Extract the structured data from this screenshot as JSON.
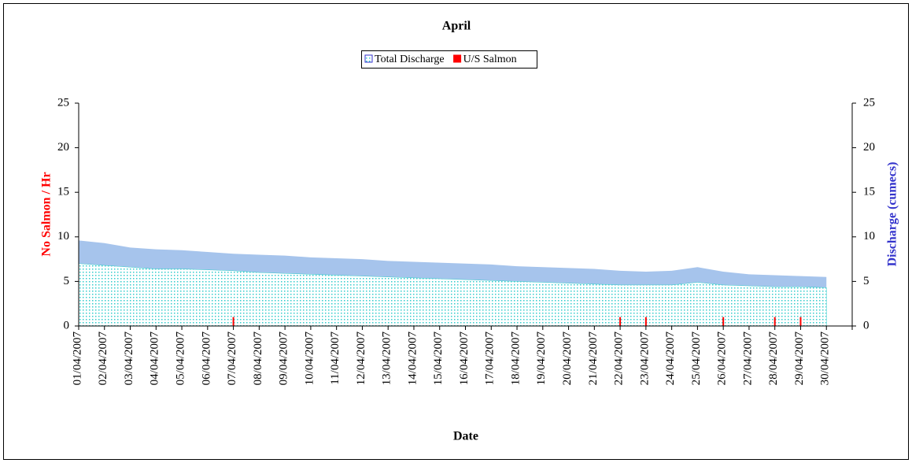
{
  "chart_data": {
    "type": "area",
    "title": "April",
    "xlabel": "Date",
    "ylabel": "No Salmon / Hr",
    "ylabel_color": "#ff0000",
    "y2label": "Discharge (cumecs)",
    "y2label_color": "#3333cc",
    "categories": [
      "01/04/2007",
      "02/04/2007",
      "03/04/2007",
      "04/04/2007",
      "05/04/2007",
      "06/04/2007",
      "07/04/2007",
      "08/04/2007",
      "09/04/2007",
      "10/04/2007",
      "11/04/2007",
      "12/04/2007",
      "13/04/2007",
      "14/04/2007",
      "15/04/2007",
      "16/04/2007",
      "17/04/2007",
      "18/04/2007",
      "19/04/2007",
      "20/04/2007",
      "21/04/2007",
      "22/04/2007",
      "23/04/2007",
      "24/04/2007",
      "25/04/2007",
      "26/04/2007",
      "27/04/2007",
      "28/04/2007",
      "29/04/2007",
      "30/04/2007"
    ],
    "series": [
      {
        "color": "#a6c4ec",
        "axis": "y2",
        "values": [
          9.6,
          9.3,
          8.8,
          8.6,
          8.5,
          8.3,
          8.1,
          8.0,
          7.9,
          7.7,
          7.6,
          7.5,
          7.3,
          7.2,
          7.1,
          7.0,
          6.9,
          6.7,
          6.6,
          6.5,
          6.4,
          6.2,
          6.1,
          6.2,
          6.6,
          6.1,
          5.8,
          5.7,
          5.6,
          5.5
        ]
      },
      {
        "name": "Total Discharge",
        "color": "#33cccc",
        "axis": "y2",
        "pattern": "dotted",
        "values": [
          7.0,
          6.8,
          6.6,
          6.4,
          6.4,
          6.3,
          6.2,
          6.0,
          5.9,
          5.8,
          5.7,
          5.6,
          5.5,
          5.4,
          5.3,
          5.2,
          5.1,
          5.0,
          4.9,
          4.8,
          4.7,
          4.6,
          4.6,
          4.6,
          4.9,
          4.6,
          4.5,
          4.4,
          4.4,
          4.3
        ]
      },
      {
        "name": "U/S Salmon",
        "color": "#ff0000",
        "axis": "y",
        "type": "bar",
        "values": [
          0,
          0,
          0,
          0,
          0,
          0,
          1,
          0,
          0,
          0,
          0,
          0,
          0,
          0,
          0,
          0,
          0,
          0,
          0,
          0,
          0,
          1,
          1,
          0,
          0,
          1,
          0,
          1,
          1,
          0
        ]
      }
    ],
    "ylim": [
      0,
      25
    ],
    "yticks": [
      0,
      5,
      10,
      15,
      20,
      25
    ],
    "y2lim": [
      0,
      25
    ],
    "y2ticks": [
      0,
      5,
      10,
      15,
      20,
      25
    ]
  }
}
